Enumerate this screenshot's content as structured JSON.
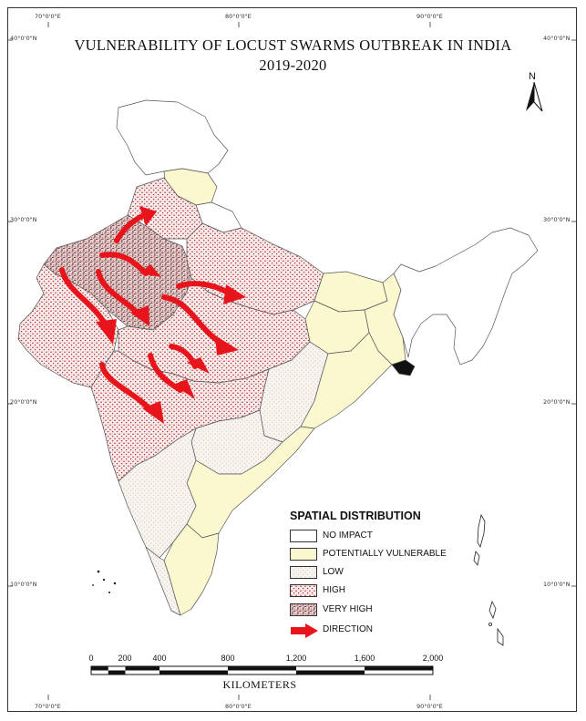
{
  "title": {
    "line1": "VULNERABILITY OF LOCUST SWARMS OUTBREAK IN INDIA",
    "line2": "2019-2020"
  },
  "graticule": {
    "top_longitudes": [
      "70°0'0\"E",
      "80°0'0\"E",
      "90°0'0\"E"
    ],
    "bottom_longitudes": [
      "70°0'0\"E",
      "80°0'0\"E",
      "90°0'0\"E"
    ],
    "left_latitudes": [
      "40°0'0\"N",
      "30°0'0\"N",
      "20°0'0\"N",
      "10°0'0\"N"
    ],
    "right_latitudes": [
      "40°0'0\"N",
      "30°0'0\"N",
      "20°0'0\"N",
      "10°0'0\"N"
    ]
  },
  "north_arrow": {
    "label": "N"
  },
  "legend": {
    "title": "SPATIAL DISTRIBUTION",
    "items": [
      {
        "label": "NO IMPACT",
        "swatch": "none"
      },
      {
        "label": "POTENTIALLY VULNERABLE",
        "swatch": "yellow"
      },
      {
        "label": "LOW",
        "swatch": "low"
      },
      {
        "label": "HIGH",
        "swatch": "high"
      },
      {
        "label": "VERY HIGH",
        "swatch": "veryhigh"
      },
      {
        "label": "DIRECTION",
        "swatch": "arrow"
      }
    ]
  },
  "scale_bar": {
    "ticks": [
      "0",
      "200",
      "400",
      "800",
      "1,200",
      "1,600",
      "2,000"
    ],
    "unit": "KILOMETERS"
  },
  "colors": {
    "potentially_vulnerable": "#fbf8cf",
    "arrow": "#e8141c",
    "high_dot": "#c0202a"
  }
}
